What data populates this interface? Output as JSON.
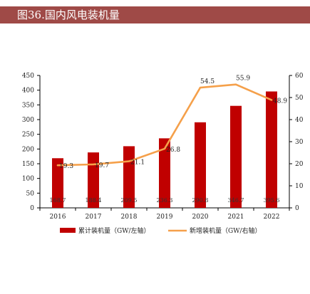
{
  "header": {
    "title": "图36.国内风电装机量"
  },
  "colors": {
    "title_bg": "#9f4a47",
    "bar": "#c00000",
    "line": "#f5a04a",
    "axis": "#000000"
  },
  "chart_data": {
    "type": "bar+line",
    "categories": [
      "2016",
      "2017",
      "2018",
      "2019",
      "2020",
      "2021",
      "2022"
    ],
    "series": [
      {
        "name": "累计装机量（GW/左轴）",
        "type": "bar",
        "axis": "left",
        "values": [
          168.7,
          188.4,
          209.5,
          236.3,
          290.8,
          346.7,
          395.6
        ],
        "labels": [
          "168.7",
          "188.4",
          "209.5",
          "236.3",
          "290.8",
          "346.7",
          "395.6"
        ]
      },
      {
        "name": "新增装机量（GW/右轴）",
        "type": "line",
        "axis": "right",
        "values": [
          19.3,
          19.7,
          21.1,
          26.8,
          54.5,
          55.9,
          48.9
        ],
        "labels": [
          "19.3",
          "19.7",
          "21.1",
          "26.8",
          "54.5",
          "55.9",
          "48.9"
        ]
      }
    ],
    "y_left": {
      "min": 0,
      "max": 450,
      "ticks": [
        0,
        50,
        100,
        150,
        200,
        250,
        300,
        350,
        400,
        450
      ]
    },
    "y_right": {
      "min": 0,
      "max": 60,
      "ticks": [
        0,
        10,
        20,
        30,
        40,
        50,
        60
      ]
    },
    "grid": false,
    "legend_position": "bottom"
  }
}
